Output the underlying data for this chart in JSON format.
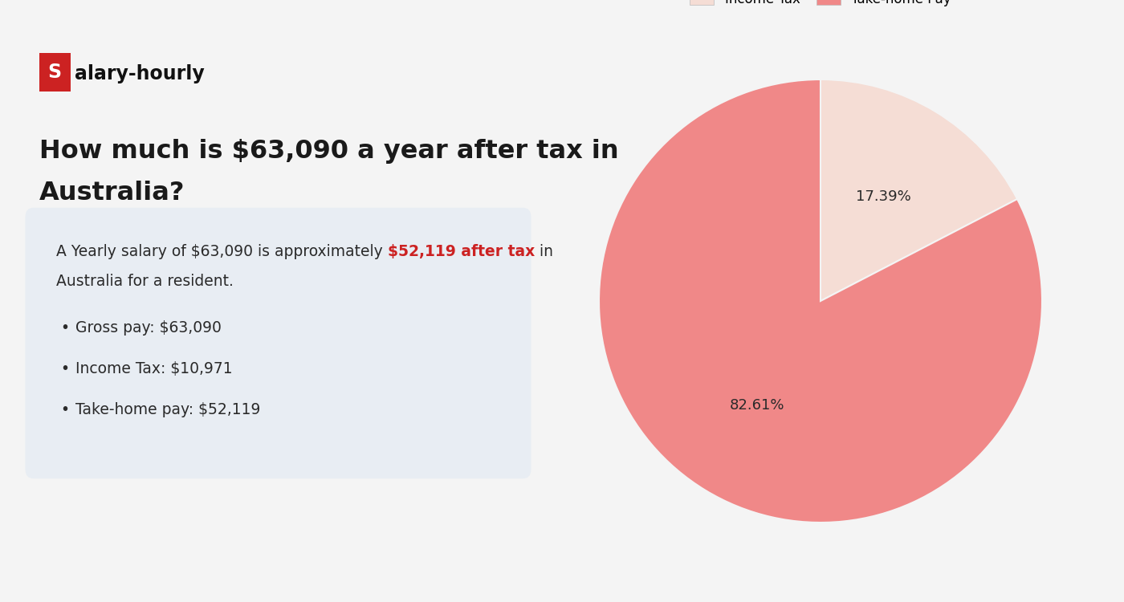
{
  "bg_color": "#f4f4f4",
  "logo_s_bg": "#cc2222",
  "logo_s_text": "S",
  "logo_rest": "alary-hourly",
  "title_line1": "How much is $63,090 a year after tax in",
  "title_line2": "Australia?",
  "title_fontsize": 23,
  "title_color": "#1a1a1a",
  "info_box_bg": "#e8edf3",
  "info_text_before": "A Yearly salary of $63,090 is approximately ",
  "info_text_highlight": "$52,119 after tax",
  "info_text_after": " in",
  "info_text_line2": "Australia for a resident.",
  "info_highlight_color": "#cc2222",
  "bullet_items": [
    "Gross pay: $63,090",
    "Income Tax: $10,971",
    "Take-home pay: $52,119"
  ],
  "bullet_fontsize": 13.5,
  "text_color": "#2a2a2a",
  "pie_values": [
    17.39,
    82.61
  ],
  "pie_labels": [
    "Income Tax",
    "Take-home Pay"
  ],
  "pie_colors": [
    "#f5ddd5",
    "#f08888"
  ],
  "pie_pct_labels": [
    "17.39%",
    "82.61%"
  ],
  "legend_fontsize": 12,
  "pct_fontsize": 13
}
